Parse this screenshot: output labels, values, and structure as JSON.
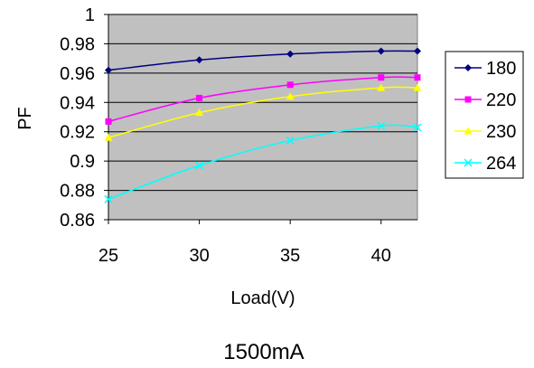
{
  "chart_data": {
    "type": "line",
    "title": "",
    "caption": "1500mA",
    "xlabel": "Load(V)",
    "ylabel": "PF",
    "xlim": [
      25,
      42
    ],
    "ylim": [
      0.86,
      1.0
    ],
    "x_ticks": [
      "25",
      "30",
      "35",
      "40"
    ],
    "y_ticks": [
      "1",
      "0.98",
      "0.96",
      "0.94",
      "0.92",
      "0.9",
      "0.88",
      "0.86"
    ],
    "grid": true,
    "plot_background": "#c0c0c0",
    "legend_position": "right",
    "series": [
      {
        "name": "180",
        "color": "#000080",
        "marker": "diamond",
        "points": [
          [
            25,
            0.962
          ],
          [
            30,
            0.969
          ],
          [
            35,
            0.973
          ],
          [
            40,
            0.975
          ],
          [
            42,
            0.975
          ]
        ]
      },
      {
        "name": "220",
        "color": "#ff00ff",
        "marker": "square",
        "points": [
          [
            25,
            0.927
          ],
          [
            30,
            0.943
          ],
          [
            35,
            0.952
          ],
          [
            40,
            0.957
          ],
          [
            42,
            0.957
          ]
        ]
      },
      {
        "name": "230",
        "color": "#ffff00",
        "marker": "triangle",
        "points": [
          [
            25,
            0.916
          ],
          [
            30,
            0.933
          ],
          [
            35,
            0.944
          ],
          [
            40,
            0.95
          ],
          [
            42,
            0.95
          ]
        ]
      },
      {
        "name": "264",
        "color": "#00ffff",
        "marker": "x",
        "points": [
          [
            25,
            0.874
          ],
          [
            30,
            0.897
          ],
          [
            35,
            0.914
          ],
          [
            40,
            0.924
          ],
          [
            42,
            0.923
          ]
        ]
      }
    ]
  }
}
